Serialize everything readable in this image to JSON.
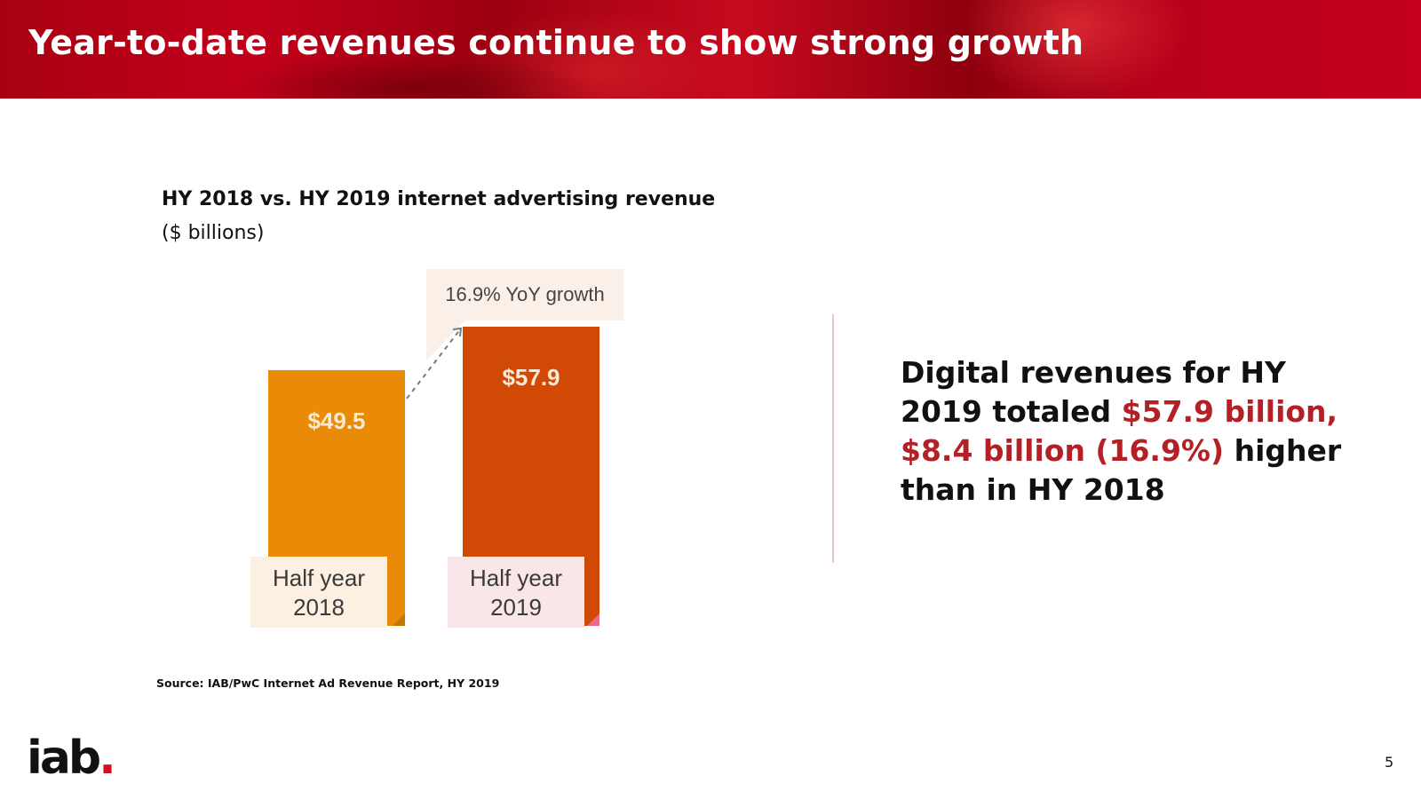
{
  "header": {
    "title": "Year-to-date revenues continue to show strong growth"
  },
  "chart": {
    "title": "HY 2018 vs. HY 2019 internet advertising revenue",
    "subtitle": "($ billions)",
    "growth_label": "16.9% YoY growth",
    "source": "Source: IAB/PwC Internet Ad Revenue Report, HY 2019"
  },
  "chart_data": {
    "type": "bar",
    "title": "HY 2018 vs. HY 2019 internet advertising revenue",
    "subtitle": "($ billions)",
    "categories": [
      "Half year 2018",
      "Half year 2019"
    ],
    "category_lines": [
      [
        "Half year",
        "2018"
      ],
      [
        "Half year",
        "2019"
      ]
    ],
    "values": [
      49.5,
      57.9
    ],
    "value_labels": [
      "$49.5",
      "$57.9"
    ],
    "annotation": "16.9% YoY growth",
    "xlabel": "",
    "ylabel": "",
    "ylim": [
      0,
      60
    ],
    "grid": false,
    "colors": [
      "#e98b07",
      "#d04a06"
    ]
  },
  "callout": {
    "part1": "Digital revenues for HY 2019 totaled ",
    "highlight": "$57.9 billion, $8.4 billion (16.9%)",
    "part2": " higher than in HY 2018"
  },
  "colors": {
    "banner": "#c0001a",
    "highlight": "#b32025",
    "bar_2018": "#e98b07",
    "bar_2019": "#d04a06",
    "label_box_2018": "#fbf0e2",
    "label_box_2019": "#f9e6e9"
  },
  "footer": {
    "logo_text": "iab",
    "logo_dot": ".",
    "page_number": "5"
  }
}
